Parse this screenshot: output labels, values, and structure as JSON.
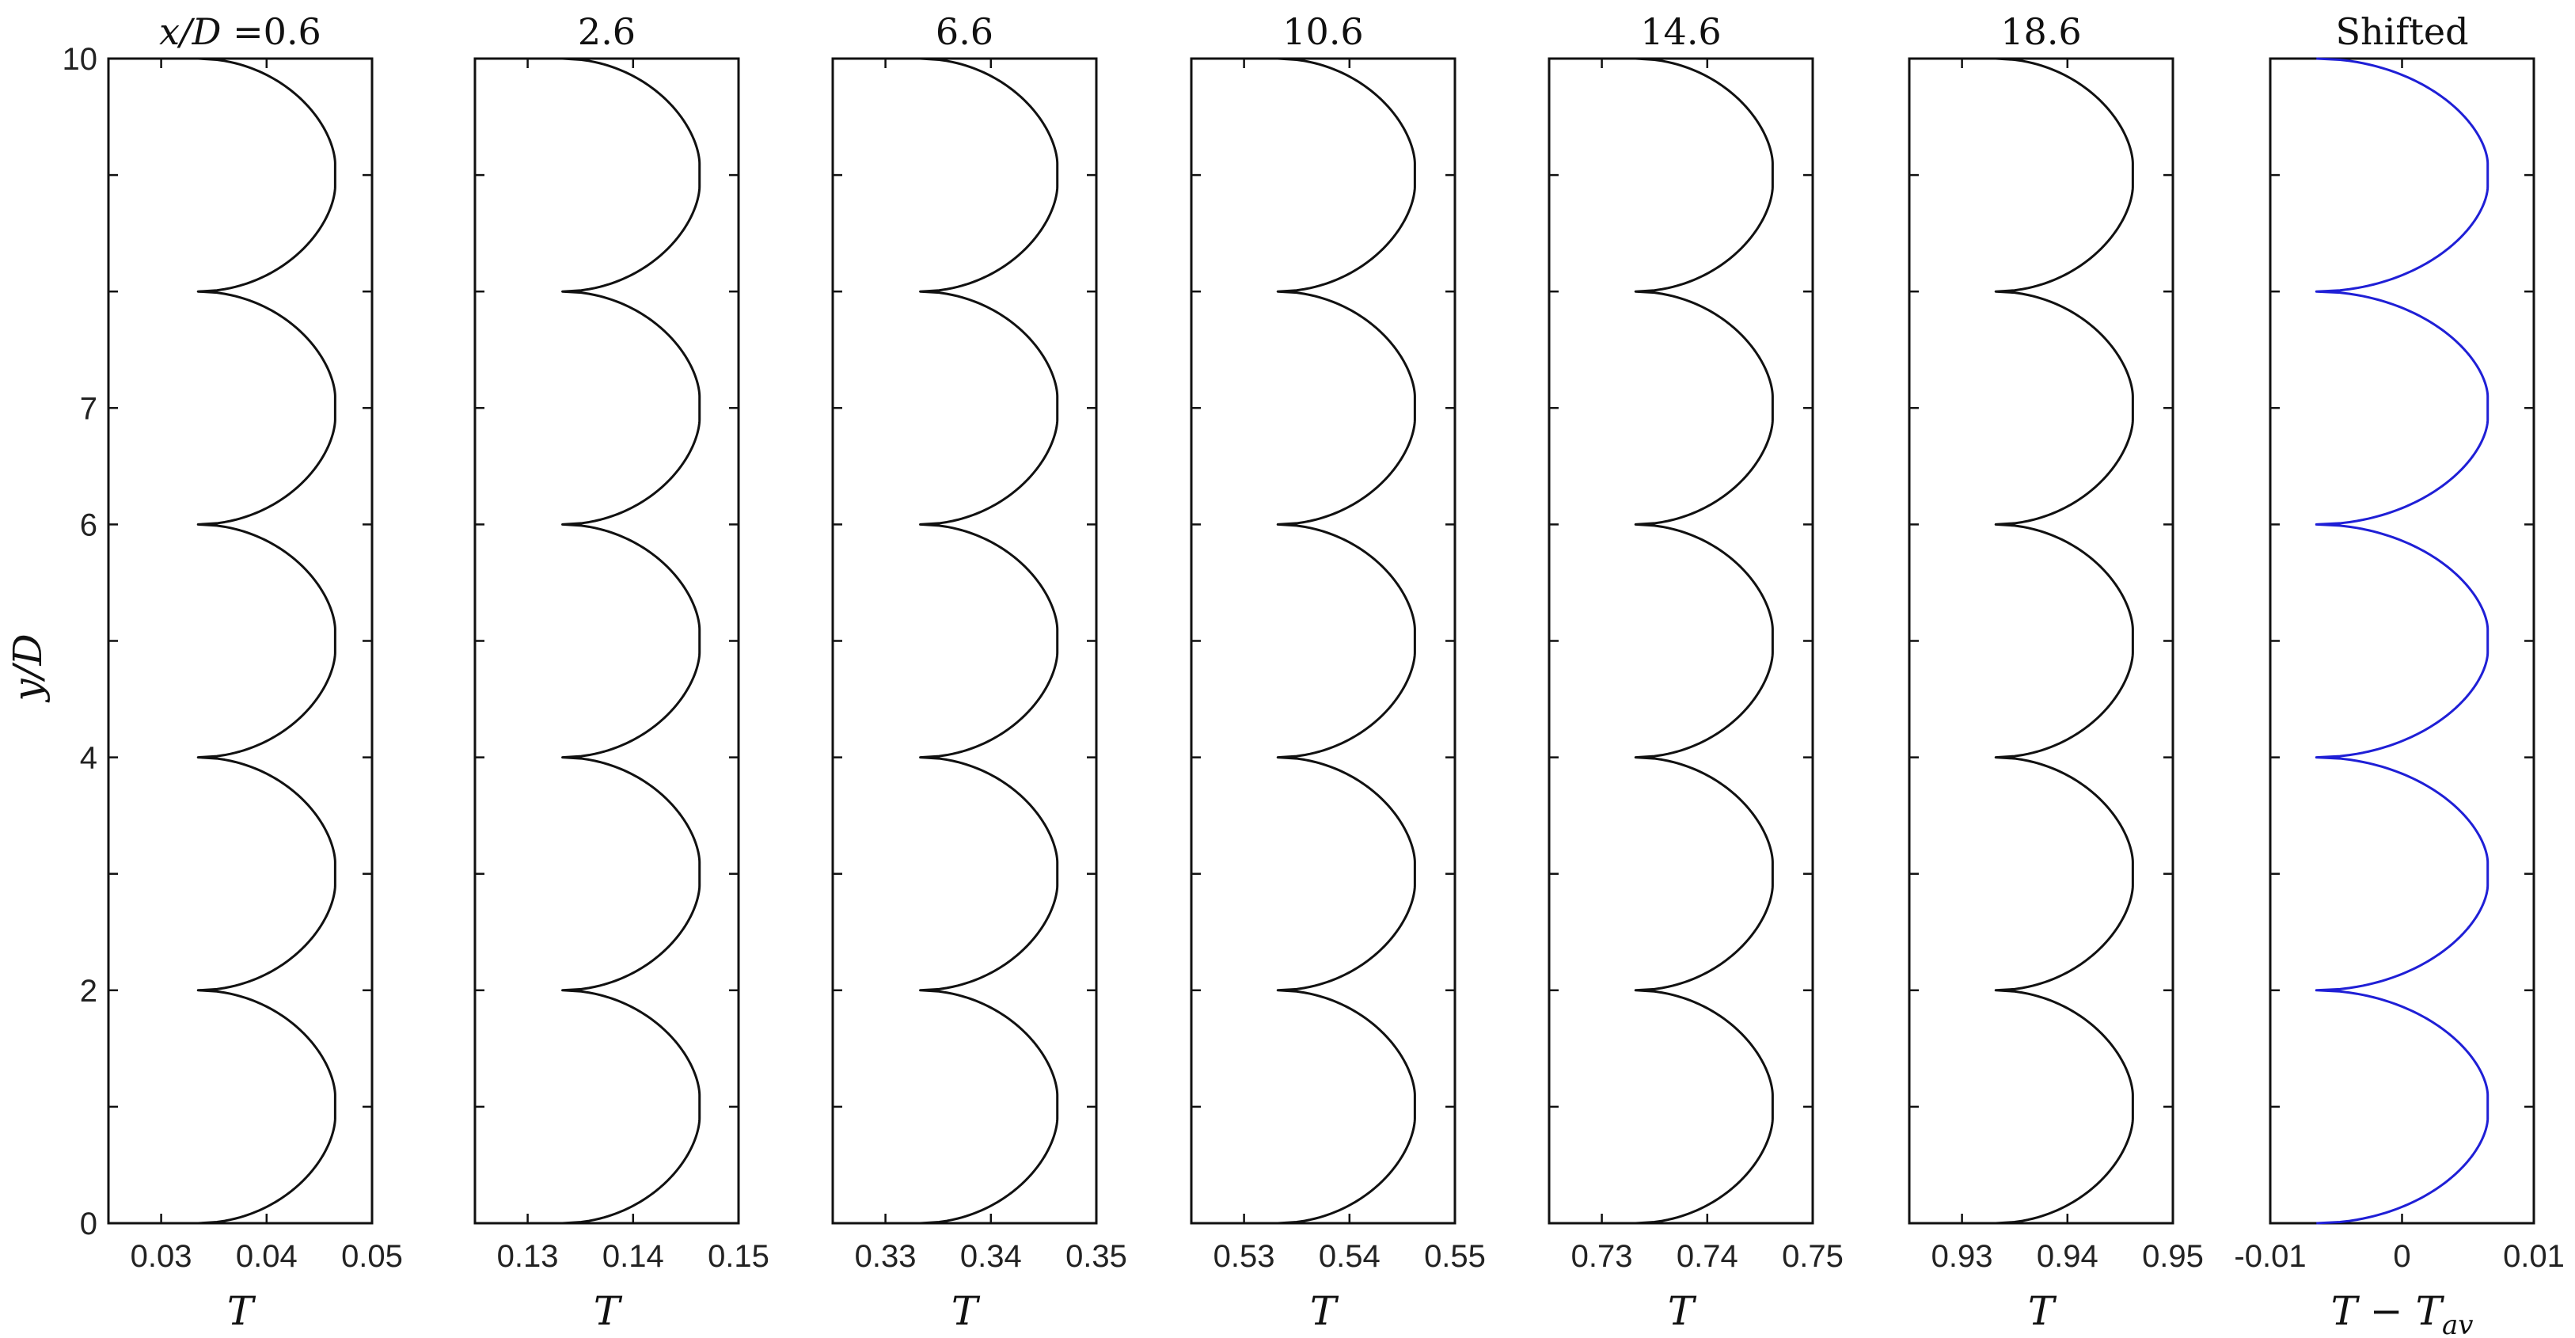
{
  "figure": {
    "ylabel": "y/D",
    "y_ticks": [
      "0",
      "2",
      "4",
      "6",
      "7",
      "10"
    ],
    "colors": {
      "black_series": "#111111",
      "shifted_series": "#1f1fd6"
    }
  },
  "chart_data": [
    {
      "type": "line",
      "title_prefix": "x/D =",
      "title": "0.6",
      "xlabel": "T",
      "xlim": [
        0.025,
        0.05
      ],
      "ylim": [
        0,
        10
      ],
      "x_ticks": [
        "0.03",
        "0.04",
        "0.05"
      ],
      "x_tick_values": [
        0.03,
        0.04,
        0.05
      ],
      "color": "#111111",
      "period": 2,
      "t_min": 0.0335,
      "t_max": 0.0465,
      "flat_half_width": 0.1,
      "flat_center_offset": 1.0
    },
    {
      "type": "line",
      "title": "2.6",
      "xlabel": "T",
      "xlim": [
        0.125,
        0.15
      ],
      "ylim": [
        0,
        10
      ],
      "x_ticks": [
        "0.13",
        "0.14",
        "0.15"
      ],
      "x_tick_values": [
        0.13,
        0.14,
        0.15
      ],
      "color": "#111111",
      "period": 2,
      "t_min": 0.1333,
      "t_max": 0.1463,
      "flat_half_width": 0.1,
      "flat_center_offset": 1.0
    },
    {
      "type": "line",
      "title": "6.6",
      "xlabel": "T",
      "xlim": [
        0.325,
        0.35
      ],
      "ylim": [
        0,
        10
      ],
      "x_ticks": [
        "0.33",
        "0.34",
        "0.35"
      ],
      "x_tick_values": [
        0.33,
        0.34,
        0.35
      ],
      "color": "#111111",
      "period": 2,
      "t_min": 0.3333,
      "t_max": 0.3463,
      "flat_half_width": 0.1,
      "flat_center_offset": 1.0
    },
    {
      "type": "line",
      "title": "10.6",
      "xlabel": "T",
      "xlim": [
        0.525,
        0.55
      ],
      "ylim": [
        0,
        10
      ],
      "x_ticks": [
        "0.53",
        "0.54",
        "0.55"
      ],
      "x_tick_values": [
        0.53,
        0.54,
        0.55
      ],
      "color": "#111111",
      "period": 2,
      "t_min": 0.5332,
      "t_max": 0.5462,
      "flat_half_width": 0.1,
      "flat_center_offset": 1.0
    },
    {
      "type": "line",
      "title": "14.6",
      "xlabel": "T",
      "xlim": [
        0.725,
        0.75
      ],
      "ylim": [
        0,
        10
      ],
      "x_ticks": [
        "0.73",
        "0.74",
        "0.75"
      ],
      "x_tick_values": [
        0.73,
        0.74,
        0.75
      ],
      "color": "#111111",
      "period": 2,
      "t_min": 0.7332,
      "t_max": 0.7462,
      "flat_half_width": 0.1,
      "flat_center_offset": 1.0
    },
    {
      "type": "line",
      "title": "18.6",
      "xlabel": "T",
      "xlim": [
        0.925,
        0.95
      ],
      "ylim": [
        0,
        10
      ],
      "x_ticks": [
        "0.93",
        "0.94",
        "0.95"
      ],
      "x_tick_values": [
        0.93,
        0.94,
        0.95
      ],
      "color": "#111111",
      "period": 2,
      "t_min": 0.9332,
      "t_max": 0.9462,
      "flat_half_width": 0.1,
      "flat_center_offset": 1.0
    },
    {
      "type": "line",
      "title": "Shifted",
      "xlabel": "T − T",
      "xlabel_sub": "av",
      "xlim": [
        -0.01,
        0.01
      ],
      "ylim": [
        0,
        10
      ],
      "x_ticks": [
        "-0.01",
        "0",
        "0.01"
      ],
      "x_tick_values": [
        -0.01,
        0,
        0.01
      ],
      "color": "#1f1fd6",
      "period": 2,
      "t_min": -0.0065,
      "t_max": 0.0065,
      "flat_half_width": 0.1,
      "flat_center_offset": 1.0
    }
  ]
}
